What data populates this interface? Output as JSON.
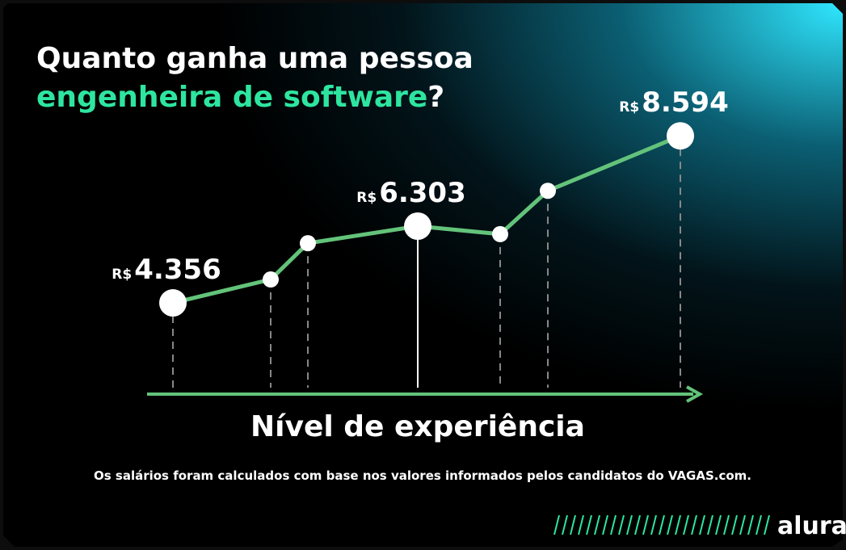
{
  "chart_data": {
    "type": "line",
    "title": [
      "Quanto ganha uma pessoa",
      "engenheira de software",
      "?"
    ],
    "categories": [
      null,
      null,
      null,
      null,
      null,
      null,
      null
    ],
    "series": [
      {
        "name": null,
        "color": "#63c37a",
        "values": [
          4356,
          4950,
          5870,
          6303,
          6100,
          7200,
          8594
        ],
        "value_labels": [
          "4.356",
          null,
          null,
          "6.303",
          null,
          null,
          "8.594"
        ]
      }
    ],
    "value_prefix": "R$",
    "ylim": [
      2000,
      12000
    ],
    "xlabel": "Nível de experiência",
    "footnote": "Os salários foram calculados com base nos valores informados pelos candidatos do VAGAS.com.",
    "brand": "alura"
  }
}
